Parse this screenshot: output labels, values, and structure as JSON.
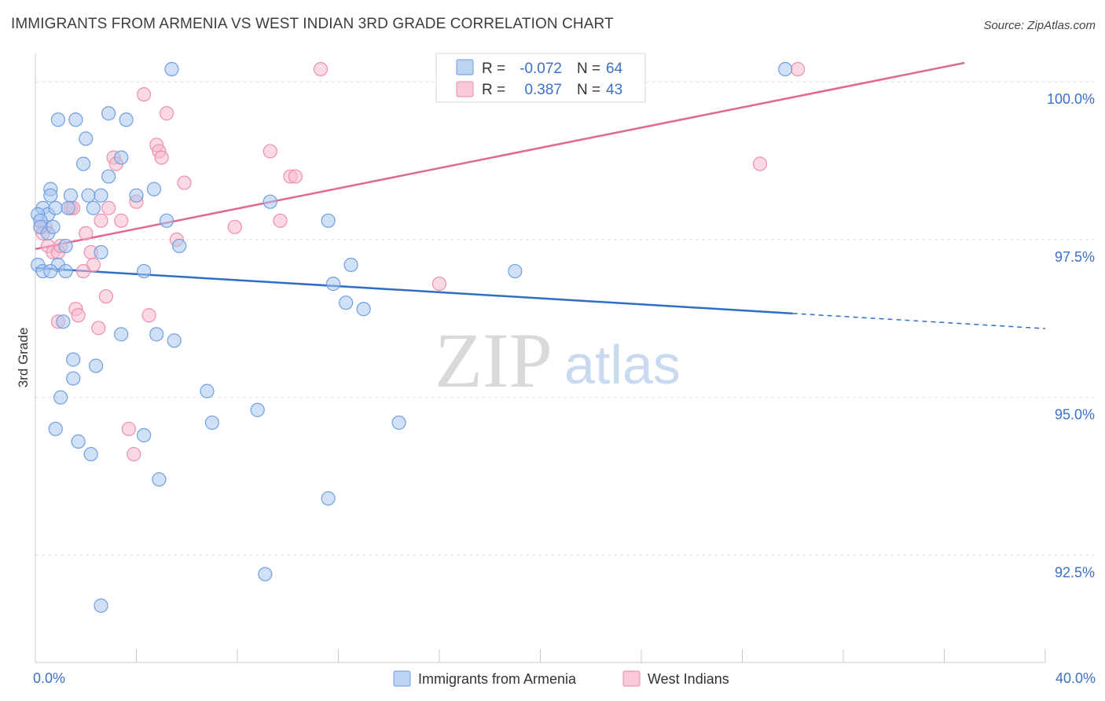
{
  "title": "IMMIGRANTS FROM ARMENIA VS WEST INDIAN 3RD GRADE CORRELATION CHART",
  "source": "Source: ZipAtlas.com",
  "watermark": {
    "part1": "ZIP",
    "part2": "atlas"
  },
  "legend": {
    "r_label": "R =",
    "n_label": "N =",
    "rows": [
      {
        "r": "-0.072",
        "n": "64"
      },
      {
        "r": "0.387",
        "n": "43"
      }
    ]
  },
  "colors": {
    "blue_fill": "#a9c6ee",
    "blue_stroke": "#6f9fe0",
    "blue_line": "#2f6ec7",
    "pink_fill": "#f7b9cc",
    "pink_stroke": "#ec8fad",
    "pink_line": "#e0688f",
    "tick_label": "#3a70c7"
  },
  "chart_data": {
    "type": "scatter",
    "title": "IMMIGRANTS FROM ARMENIA VS WEST INDIAN 3RD GRADE CORRELATION CHART",
    "xlabel": "",
    "ylabel": "3rd Grade",
    "xlim": [
      0,
      40
    ],
    "ylim": [
      90.8,
      100.3
    ],
    "x_tick_labels": [
      "0.0%",
      "40.0%"
    ],
    "y_ticks": [
      {
        "value": 100.0,
        "label": "100.0%"
      },
      {
        "value": 97.5,
        "label": "97.5%"
      },
      {
        "value": 95.0,
        "label": "95.0%"
      },
      {
        "value": 92.5,
        "label": "92.5%"
      }
    ],
    "grid": true,
    "series": [
      {
        "name": "Immigrants from Armenia",
        "color": "#a9c6ee",
        "r": -0.072,
        "n": 64,
        "trend": {
          "x0": 0.0,
          "y0": 97.05,
          "x1": 30.0,
          "y1": 96.33,
          "dashed_to_x": 40.0,
          "dashed_to_y": 96.09
        },
        "points": [
          [
            5.4,
            100.2
          ],
          [
            29.7,
            100.2
          ],
          [
            0.9,
            99.4
          ],
          [
            1.6,
            99.4
          ],
          [
            2.9,
            99.5
          ],
          [
            3.6,
            99.4
          ],
          [
            2.0,
            99.1
          ],
          [
            1.9,
            98.7
          ],
          [
            3.4,
            98.8
          ],
          [
            2.9,
            98.5
          ],
          [
            0.6,
            98.3
          ],
          [
            0.6,
            98.2
          ],
          [
            1.4,
            98.2
          ],
          [
            2.1,
            98.2
          ],
          [
            2.6,
            98.2
          ],
          [
            4.0,
            98.2
          ],
          [
            4.7,
            98.3
          ],
          [
            9.3,
            98.1
          ],
          [
            0.3,
            98.0
          ],
          [
            0.5,
            97.9
          ],
          [
            0.8,
            98.0
          ],
          [
            2.3,
            98.0
          ],
          [
            1.3,
            98.0
          ],
          [
            0.1,
            97.9
          ],
          [
            0.2,
            97.8
          ],
          [
            0.2,
            97.7
          ],
          [
            0.5,
            97.6
          ],
          [
            0.7,
            97.7
          ],
          [
            5.2,
            97.8
          ],
          [
            11.6,
            97.8
          ],
          [
            1.2,
            97.4
          ],
          [
            5.7,
            97.4
          ],
          [
            2.6,
            97.3
          ],
          [
            0.1,
            97.1
          ],
          [
            0.9,
            97.1
          ],
          [
            0.3,
            97.0
          ],
          [
            0.6,
            97.0
          ],
          [
            1.2,
            97.0
          ],
          [
            4.3,
            97.0
          ],
          [
            12.5,
            97.1
          ],
          [
            19.0,
            97.0
          ],
          [
            11.8,
            96.8
          ],
          [
            12.3,
            96.5
          ],
          [
            13.0,
            96.4
          ],
          [
            1.1,
            96.2
          ],
          [
            3.4,
            96.0
          ],
          [
            4.8,
            96.0
          ],
          [
            5.5,
            95.9
          ],
          [
            1.5,
            95.6
          ],
          [
            2.4,
            95.5
          ],
          [
            1.5,
            95.3
          ],
          [
            1.0,
            95.0
          ],
          [
            8.8,
            94.8
          ],
          [
            7.0,
            94.6
          ],
          [
            14.4,
            94.6
          ],
          [
            0.8,
            94.5
          ],
          [
            1.7,
            94.3
          ],
          [
            4.3,
            94.4
          ],
          [
            2.2,
            94.1
          ],
          [
            4.9,
            93.7
          ],
          [
            11.6,
            93.4
          ],
          [
            9.1,
            92.2
          ],
          [
            2.6,
            91.7
          ],
          [
            6.8,
            95.1
          ]
        ]
      },
      {
        "name": "West Indians",
        "color": "#f7b9cc",
        "r": 0.387,
        "n": 43,
        "trend": {
          "x0": 0.0,
          "y0": 97.35,
          "x1": 36.8,
          "y1": 100.3
        },
        "points": [
          [
            11.3,
            100.2
          ],
          [
            30.2,
            100.2
          ],
          [
            4.3,
            99.8
          ],
          [
            5.2,
            99.5
          ],
          [
            4.8,
            99.0
          ],
          [
            4.9,
            98.9
          ],
          [
            5.0,
            98.8
          ],
          [
            9.3,
            98.9
          ],
          [
            3.1,
            98.8
          ],
          [
            3.2,
            98.7
          ],
          [
            28.7,
            98.7
          ],
          [
            10.1,
            98.5
          ],
          [
            10.3,
            98.5
          ],
          [
            5.9,
            98.4
          ],
          [
            4.0,
            98.1
          ],
          [
            1.4,
            98.0
          ],
          [
            1.5,
            98.0
          ],
          [
            2.9,
            98.0
          ],
          [
            2.6,
            97.8
          ],
          [
            3.4,
            97.8
          ],
          [
            9.7,
            97.8
          ],
          [
            7.9,
            97.7
          ],
          [
            0.2,
            97.7
          ],
          [
            0.4,
            97.7
          ],
          [
            0.3,
            97.6
          ],
          [
            2.0,
            97.6
          ],
          [
            5.6,
            97.5
          ],
          [
            0.5,
            97.4
          ],
          [
            0.7,
            97.3
          ],
          [
            0.9,
            97.3
          ],
          [
            2.2,
            97.3
          ],
          [
            1.0,
            97.4
          ],
          [
            2.3,
            97.1
          ],
          [
            1.9,
            97.0
          ],
          [
            2.8,
            96.6
          ],
          [
            16.0,
            96.8
          ],
          [
            1.6,
            96.4
          ],
          [
            1.7,
            96.3
          ],
          [
            4.5,
            96.3
          ],
          [
            0.9,
            96.2
          ],
          [
            2.5,
            96.1
          ],
          [
            3.7,
            94.5
          ],
          [
            3.9,
            94.1
          ]
        ]
      }
    ]
  }
}
